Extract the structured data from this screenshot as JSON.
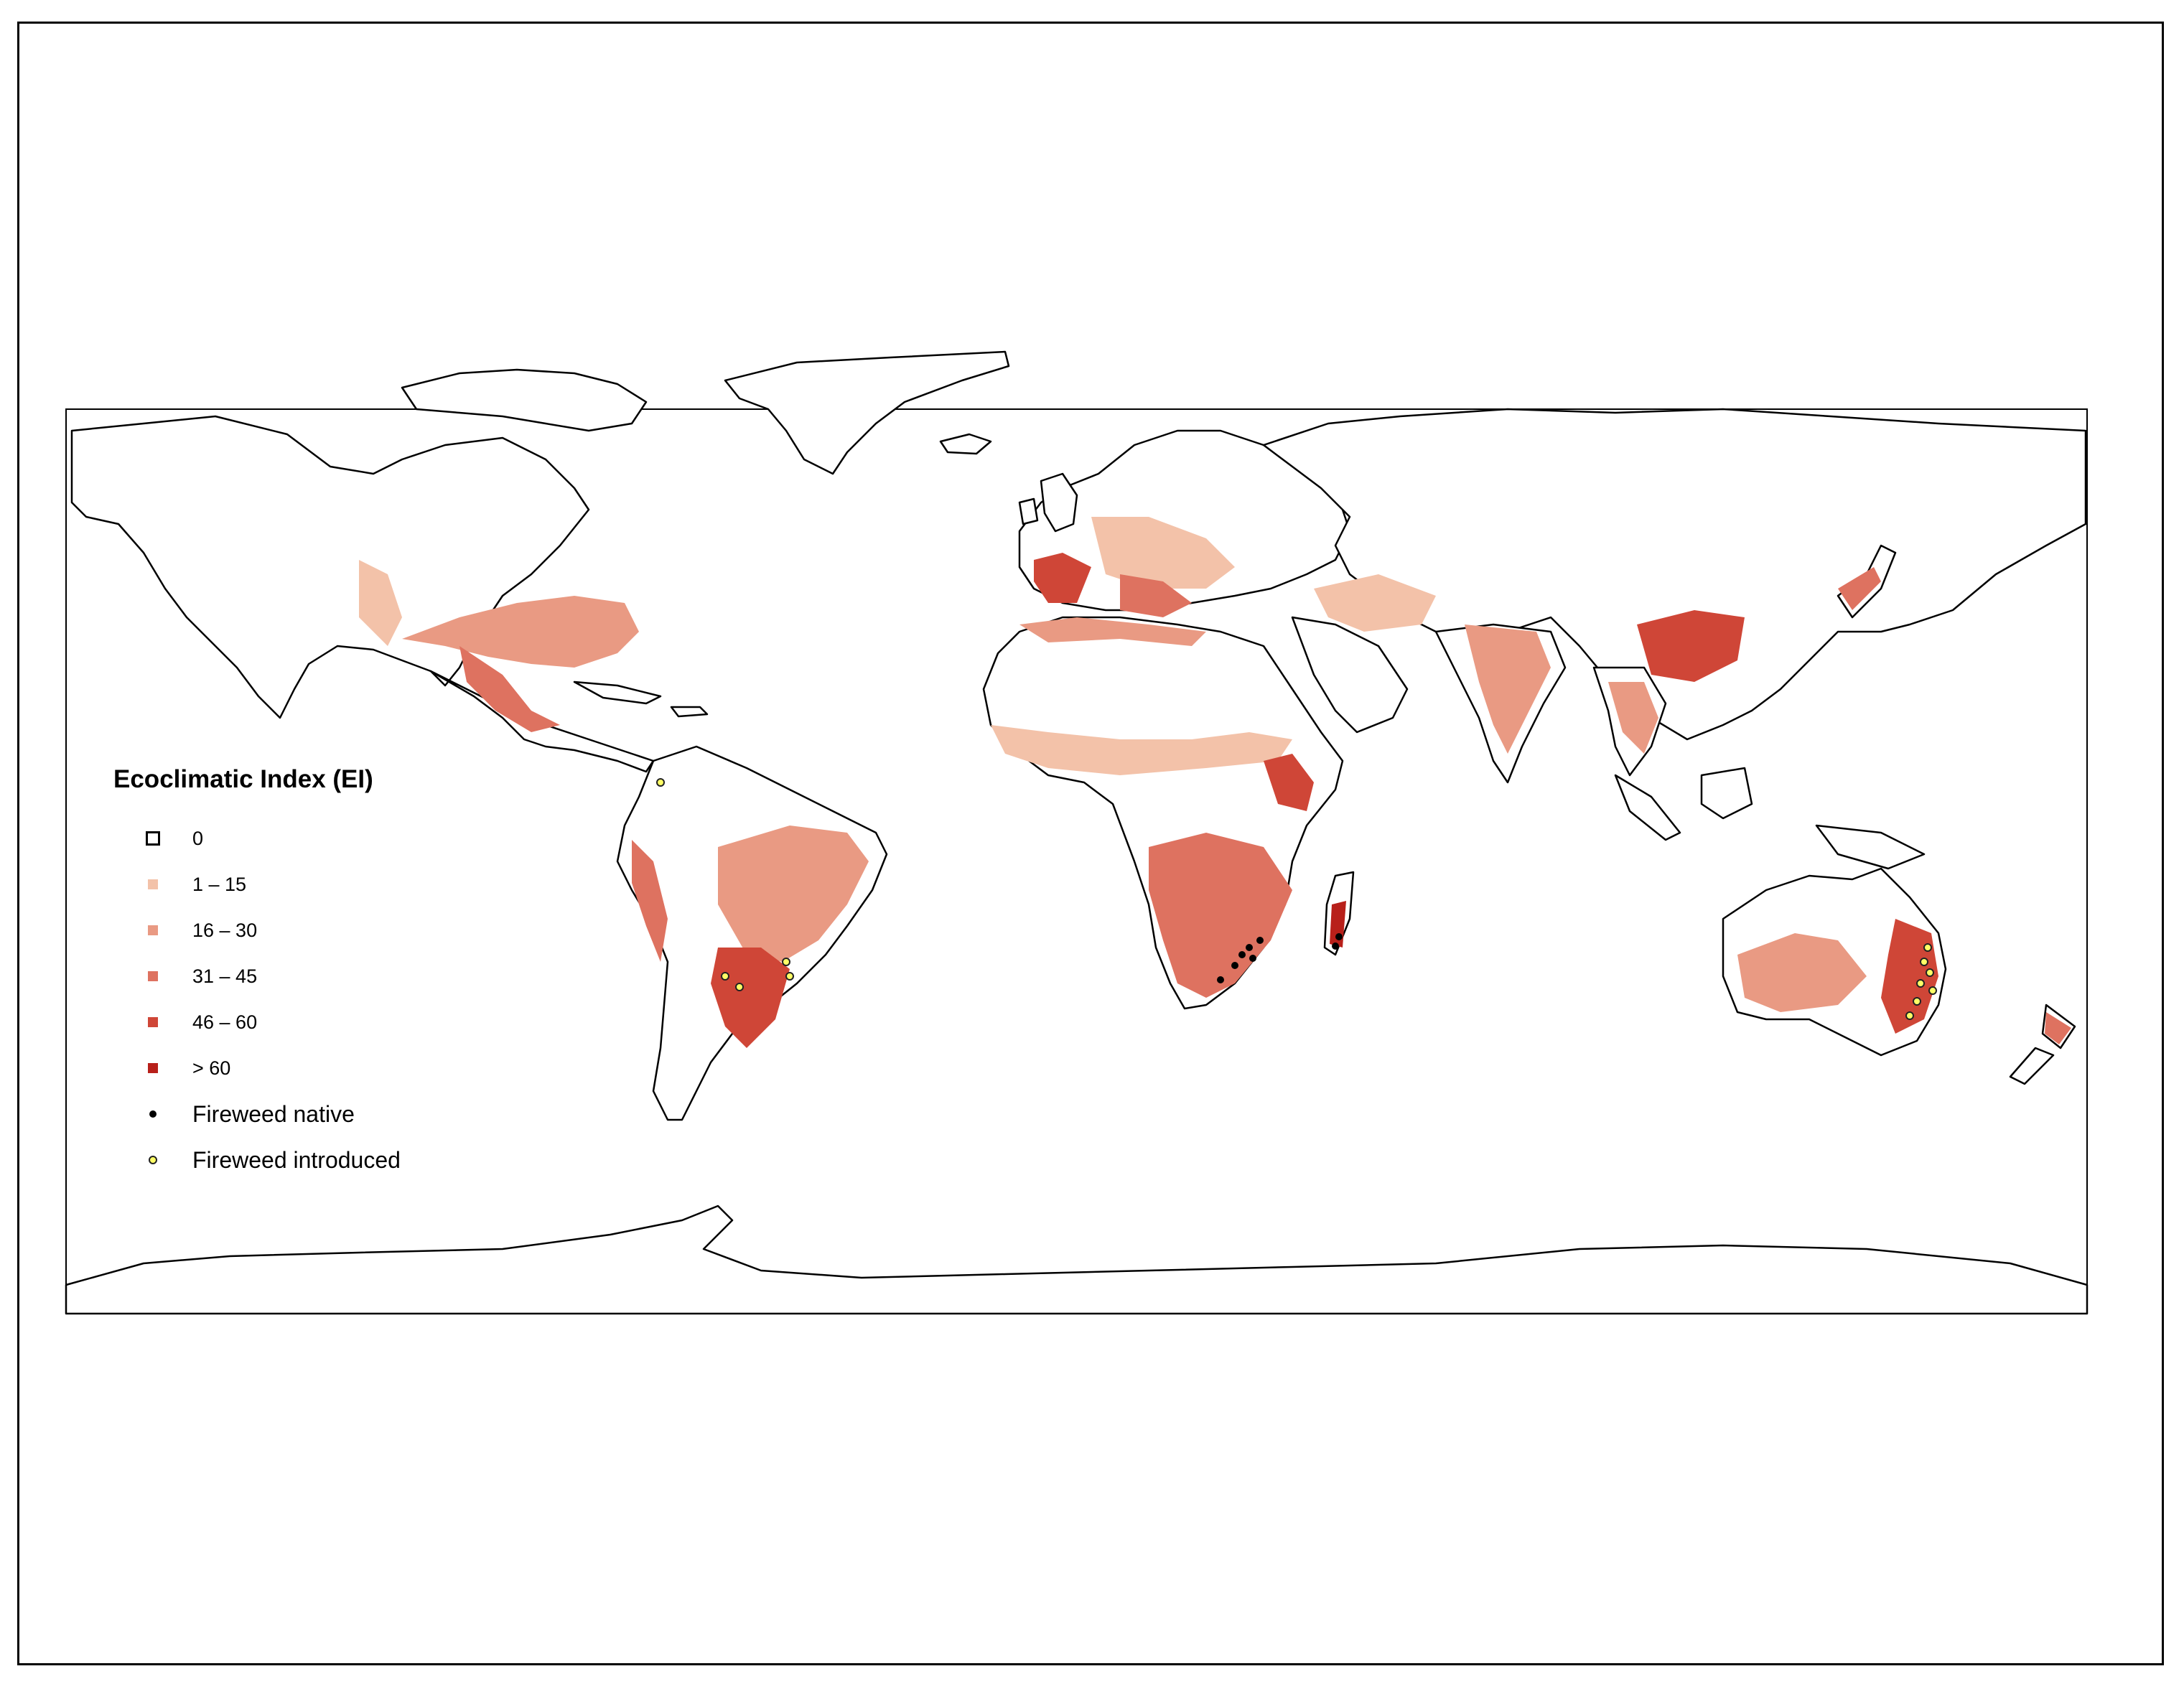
{
  "legend": {
    "title": "Ecoclimatic Index (EI)",
    "classes": [
      {
        "label": "0",
        "color": "#ffffff"
      },
      {
        "label": "1 – 15",
        "color": "#f3c2a9"
      },
      {
        "label": "16 – 30",
        "color": "#e99a83"
      },
      {
        "label": "31 – 45",
        "color": "#de7260"
      },
      {
        "label": "46 – 60",
        "color": "#cf4637"
      },
      {
        "label": "> 60",
        "color": "#b8201a"
      }
    ],
    "points": [
      {
        "label": "Fireweed native",
        "color": "#000000"
      },
      {
        "label": "Fireweed introduced",
        "color": "#ffff66"
      }
    ]
  }
}
